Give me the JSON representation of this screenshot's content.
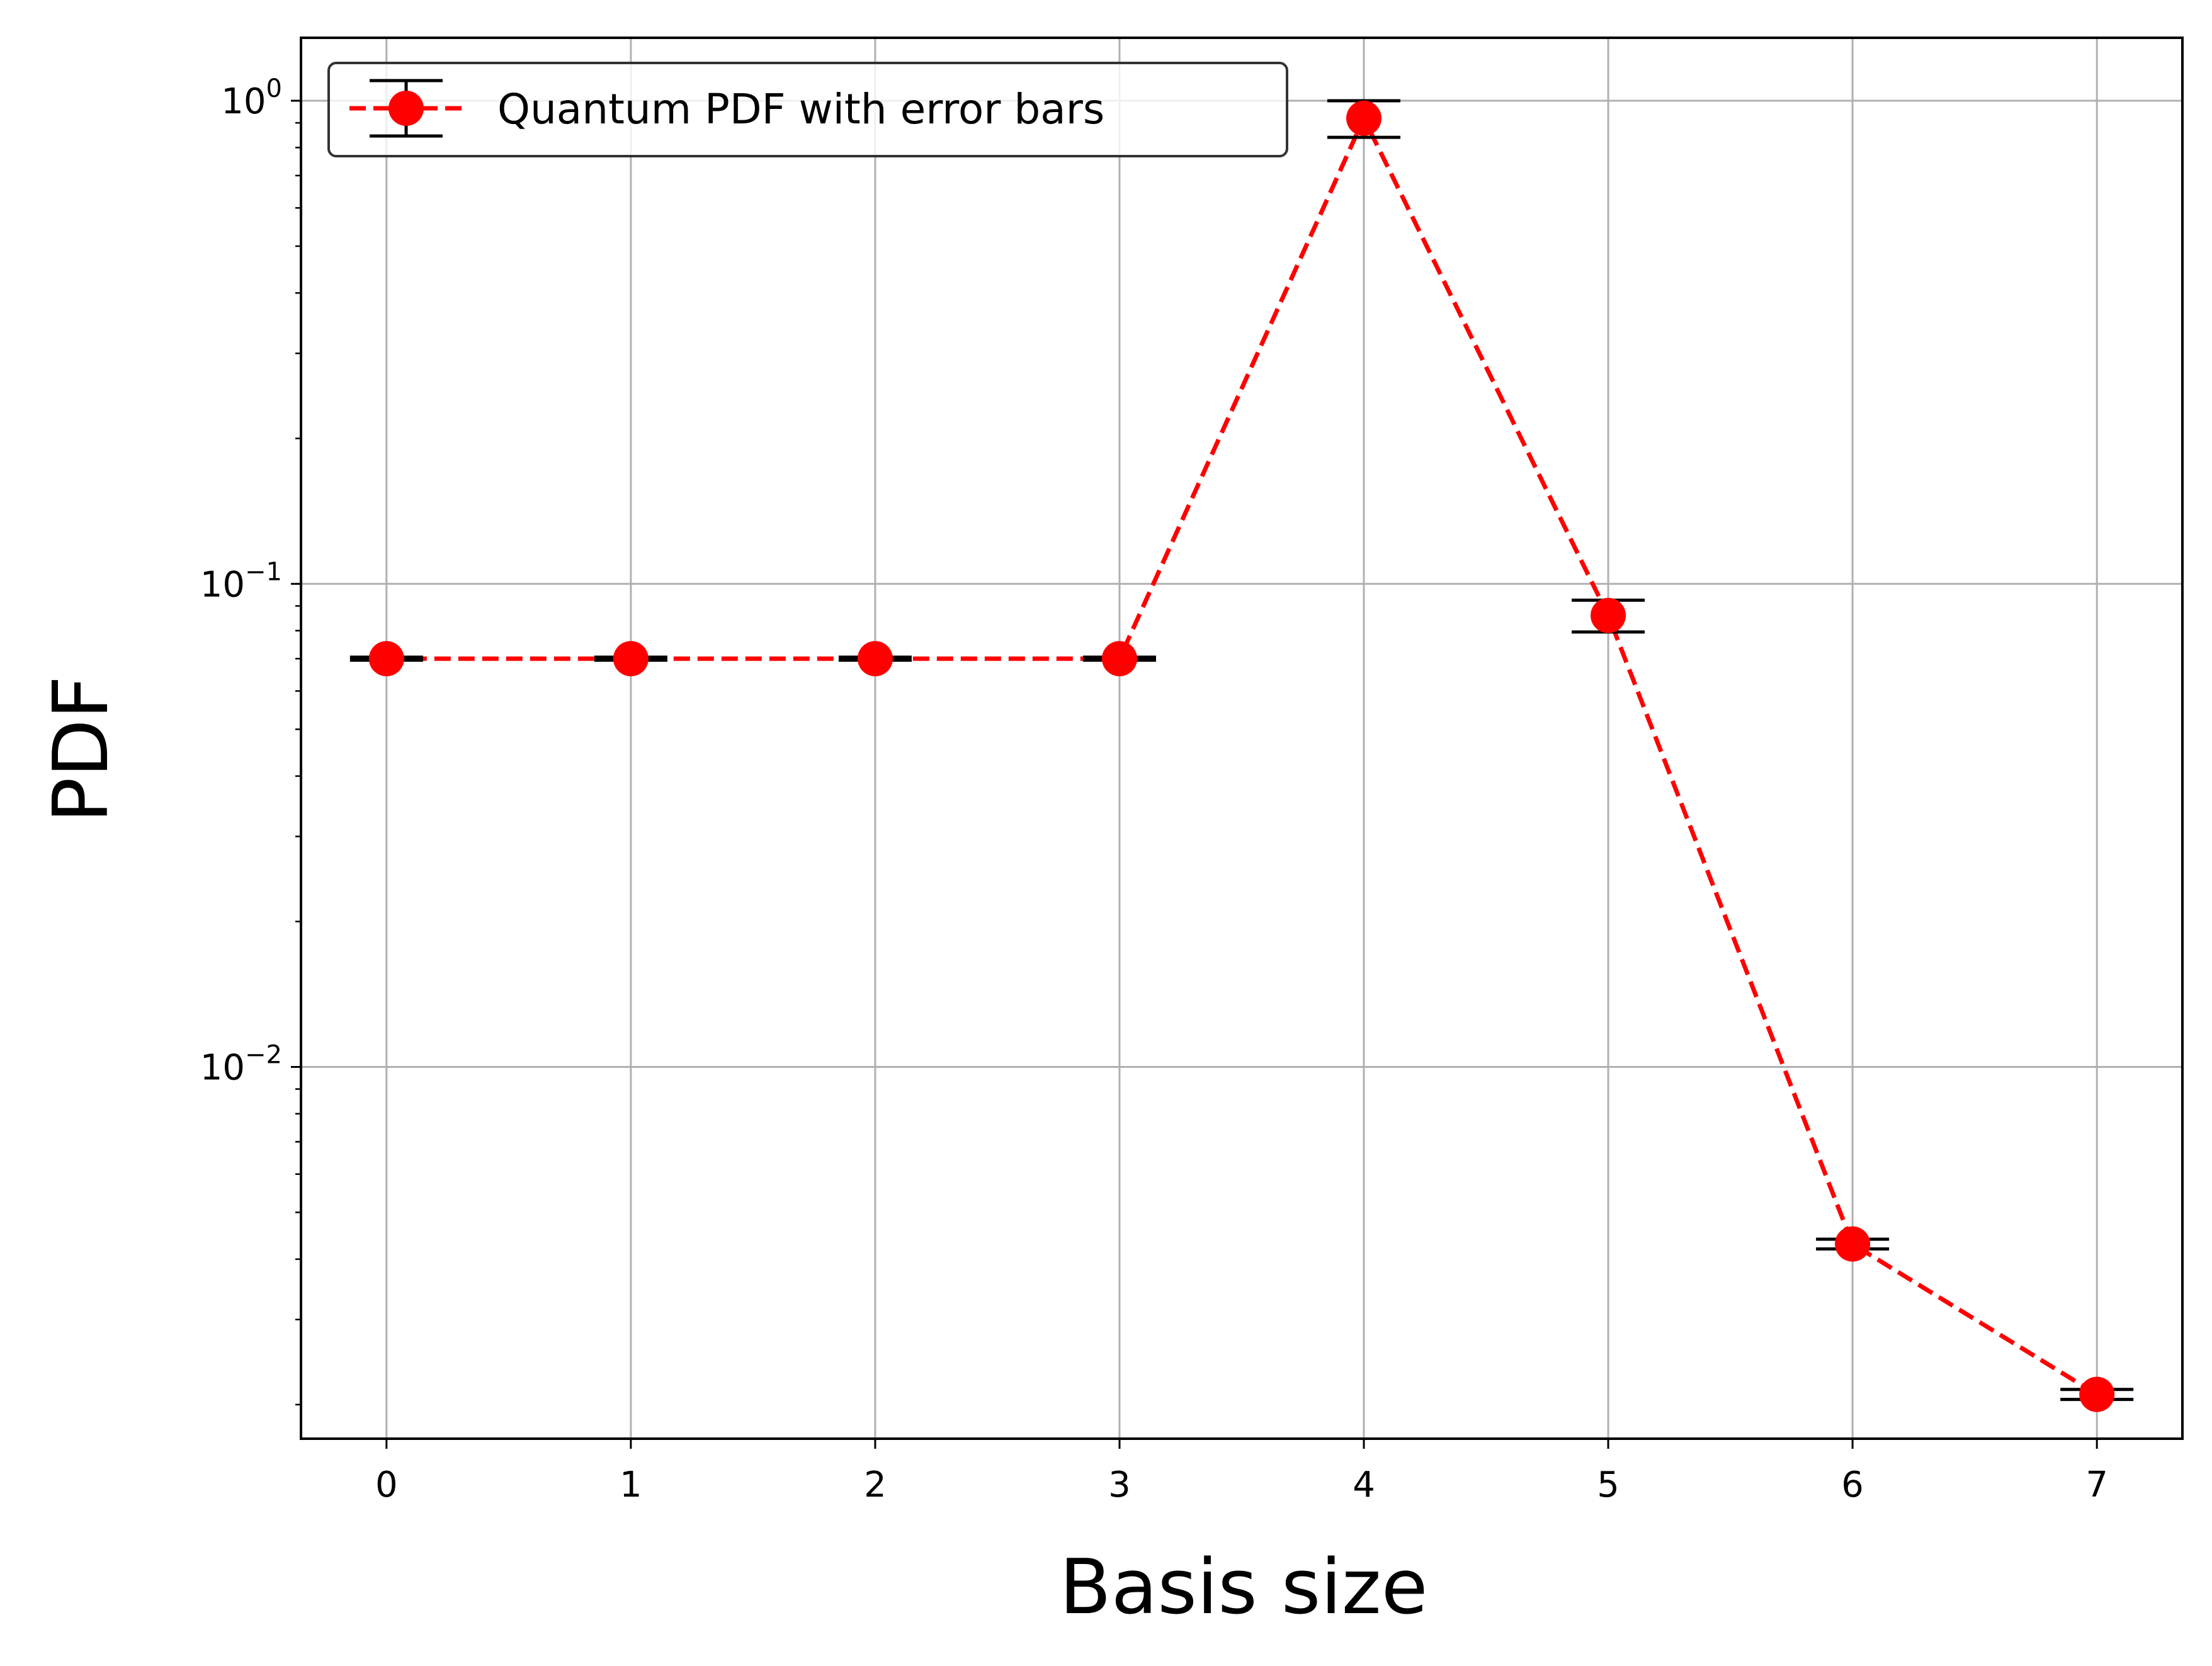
{
  "chart_data": {
    "type": "line",
    "xlabel": "Basis size",
    "ylabel": "PDF",
    "yscale": "log",
    "xlim": [
      -0.35,
      7.35
    ],
    "ylim": [
      0.0017,
      1.35
    ],
    "grid": true,
    "legend_placement": "top-left",
    "x_ticks": [
      "0",
      "1",
      "2",
      "3",
      "4",
      "5",
      "6",
      "7"
    ],
    "y_ticks": [
      {
        "value": 0.01,
        "base": "10",
        "exp": "−2"
      },
      {
        "value": 0.1,
        "base": "10",
        "exp": "−1"
      },
      {
        "value": 1,
        "base": "10",
        "exp": "0"
      }
    ],
    "series": [
      {
        "name": "Quantum PDF with error bars",
        "color": "#ff0000",
        "errorbar_color": "#000000",
        "linestyle": "dashed",
        "marker": "circle",
        "x": [
          0,
          1,
          2,
          3,
          4,
          5,
          6,
          7
        ],
        "y": [
          0.07,
          0.07,
          0.07,
          0.07,
          0.92,
          0.086,
          0.0043,
          0.0021
        ],
        "yerr": [
          0.0005,
          0.0005,
          0.0005,
          0.0005,
          0.08,
          0.0065,
          0.0001,
          5e-05
        ]
      }
    ]
  }
}
